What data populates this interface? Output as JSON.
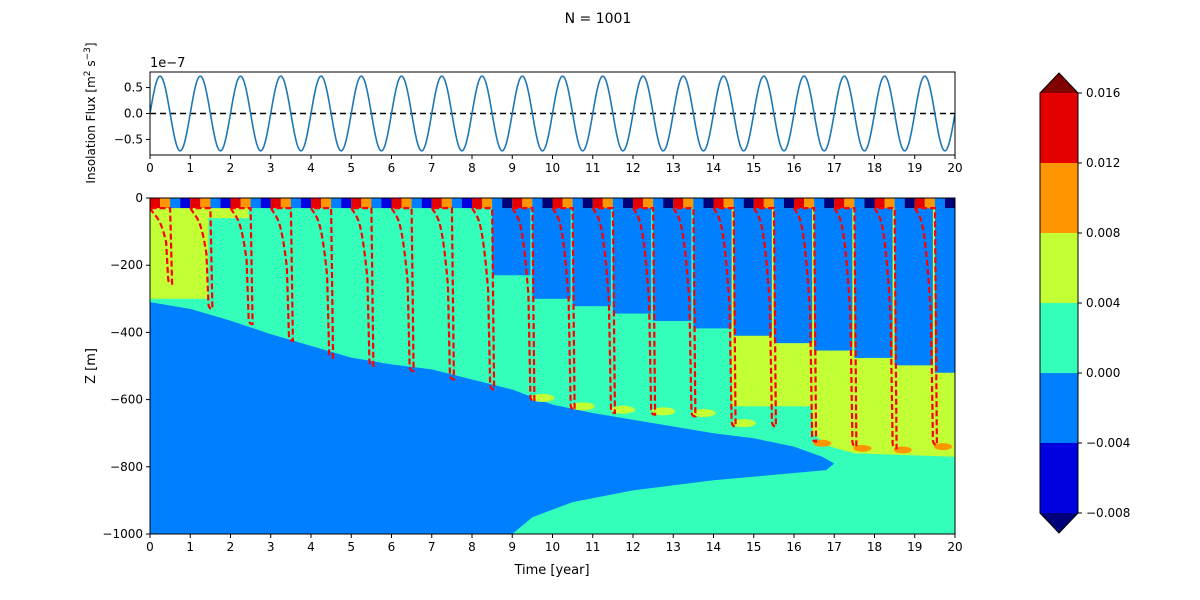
{
  "figure_title": "N = 1001",
  "chart_data": [
    {
      "type": "line",
      "ylabel_main": "Insolation Flux [m",
      "ylabel_sup1": "2",
      "ylabel_mid": " s",
      "ylabel_sup2": "−3",
      "ylabel_end": "]",
      "offset_label": "1e−7",
      "xlim": [
        0,
        20
      ],
      "ylim": [
        -0.8,
        0.8
      ],
      "x_ticks": [
        "0",
        "1",
        "2",
        "3",
        "4",
        "5",
        "6",
        "7",
        "8",
        "9",
        "10",
        "11",
        "12",
        "13",
        "14",
        "15",
        "16",
        "17",
        "18",
        "19",
        "20"
      ],
      "y_ticks": [
        "0.5",
        "0.0",
        "−0.5"
      ],
      "y_tick_values": [
        0.5,
        0.0,
        -0.5
      ],
      "series": [
        {
          "amplitude": 0.72,
          "period_years": 1.0,
          "color": "#1f77b4"
        }
      ],
      "reference_line": {
        "y": 0.0,
        "color": "#000000",
        "style": "dashed"
      }
    },
    {
      "type": "heatmap",
      "xlabel": "Time [year]",
      "ylabel": "Z [m]",
      "xlim": [
        0,
        20
      ],
      "ylim": [
        -1000,
        0
      ],
      "x_ticks": [
        "0",
        "1",
        "2",
        "3",
        "4",
        "5",
        "6",
        "7",
        "8",
        "9",
        "10",
        "11",
        "12",
        "13",
        "14",
        "15",
        "16",
        "17",
        "18",
        "19",
        "20"
      ],
      "y_ticks": [
        "0",
        "−200",
        "−400",
        "−600",
        "−800",
        "−1000"
      ],
      "y_tick_values": [
        0,
        -200,
        -400,
        -600,
        -800,
        -1000
      ],
      "colorbar": {
        "levels": [
          -0.008,
          -0.004,
          0.0,
          0.004,
          0.008,
          0.012,
          0.016
        ],
        "tick_labels": [
          "−0.008",
          "−0.004",
          "0.000",
          "0.004",
          "0.008",
          "0.012",
          "0.016"
        ],
        "colors": [
          "#0000e0",
          "#0080ff",
          "#33ffbb",
          "#c3ff35",
          "#ff9500",
          "#e40000"
        ],
        "under_color": "#00007a",
        "over_color": "#800000"
      },
      "region_colors": {
        "deep": "#0080ff",
        "mid": "#33ffbb",
        "upper": "#c3ff35",
        "contour": "#ff0000"
      },
      "deep_boundary": [
        [
          0,
          -310
        ],
        [
          1,
          -330
        ],
        [
          2,
          -365
        ],
        [
          3,
          -405
        ],
        [
          4,
          -440
        ],
        [
          5,
          -475
        ],
        [
          6,
          -495
        ],
        [
          7,
          -510
        ],
        [
          8,
          -540
        ],
        [
          9,
          -570
        ],
        [
          10,
          -615
        ],
        [
          11,
          -640
        ],
        [
          12,
          -660
        ],
        [
          13,
          -680
        ],
        [
          14,
          -700
        ],
        [
          15,
          -715
        ],
        [
          16,
          -740
        ],
        [
          16.7,
          -770
        ],
        [
          17,
          -790
        ],
        [
          16.8,
          -810
        ],
        [
          14,
          -840
        ],
        [
          12,
          -870
        ],
        [
          10.5,
          -905
        ],
        [
          9.5,
          -950
        ],
        [
          9,
          -1000
        ]
      ],
      "mld_cycles": [
        {
          "t": 0.45,
          "depth": -255
        },
        {
          "t": 1.45,
          "depth": -330
        },
        {
          "t": 2.45,
          "depth": -375
        },
        {
          "t": 3.45,
          "depth": -425
        },
        {
          "t": 4.45,
          "depth": -475
        },
        {
          "t": 5.45,
          "depth": -500
        },
        {
          "t": 6.45,
          "depth": -515
        },
        {
          "t": 7.45,
          "depth": -540
        },
        {
          "t": 8.45,
          "depth": -570
        },
        {
          "t": 9.45,
          "depth": -605
        },
        {
          "t": 10.45,
          "depth": -630
        },
        {
          "t": 11.45,
          "depth": -640
        },
        {
          "t": 12.45,
          "depth": -645
        },
        {
          "t": 13.45,
          "depth": -650
        },
        {
          "t": 14.45,
          "depth": -680
        },
        {
          "t": 15.45,
          "depth": -680
        },
        {
          "t": 16.45,
          "depth": -725
        },
        {
          "t": 17.45,
          "depth": -740
        },
        {
          "t": 18.45,
          "depth": -745
        },
        {
          "t": 19.45,
          "depth": -735
        }
      ]
    }
  ]
}
